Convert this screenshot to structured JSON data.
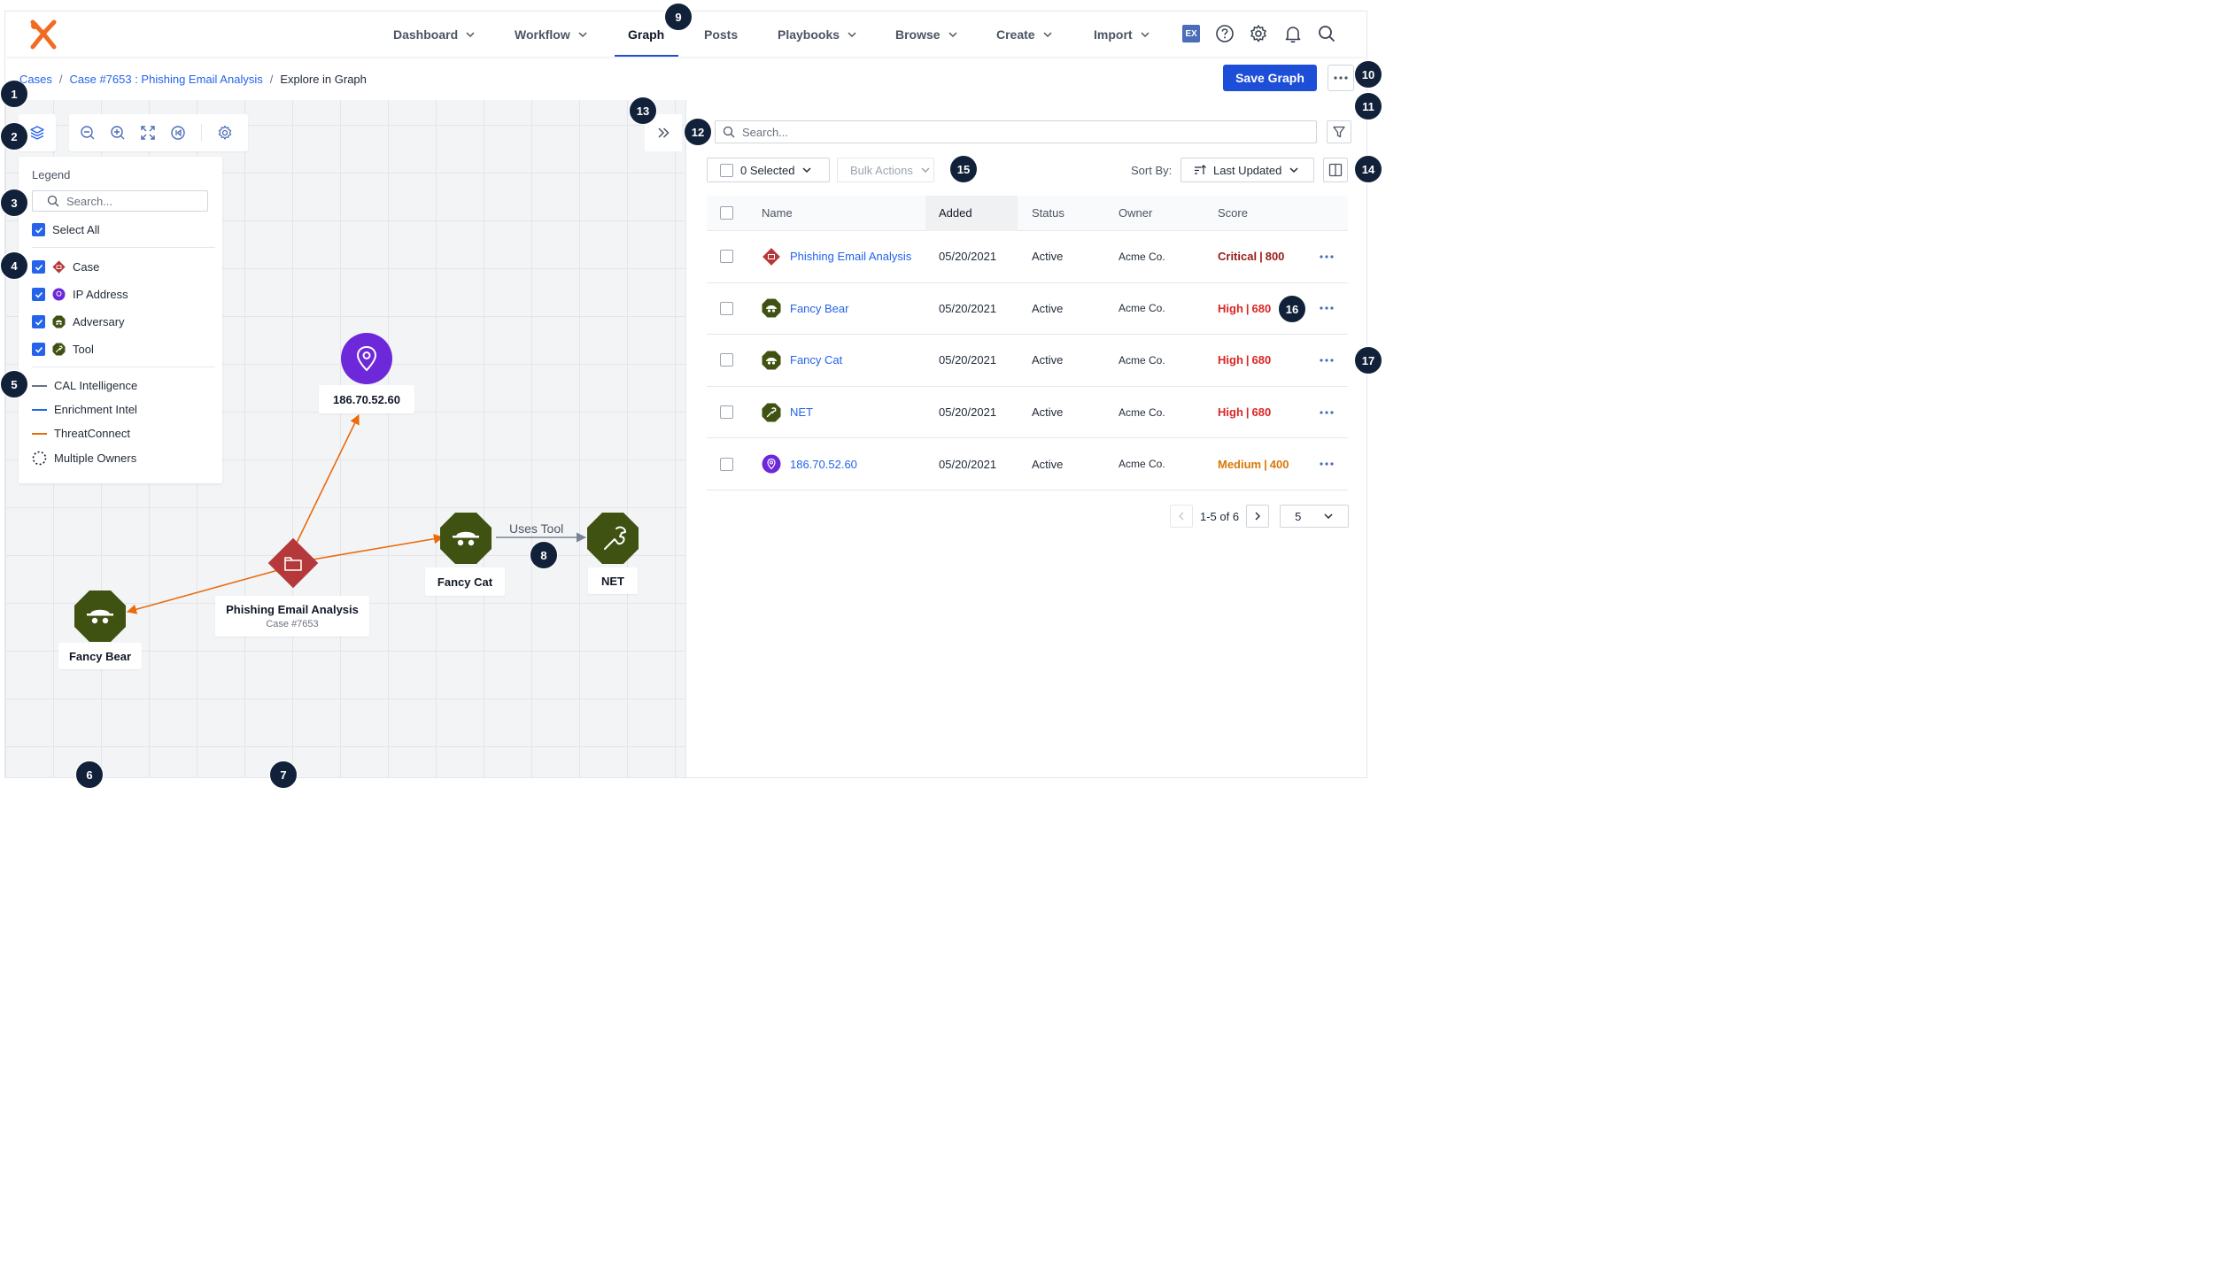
{
  "nav": {
    "items": [
      {
        "label": "Dashboard"
      },
      {
        "label": "Workflow"
      },
      {
        "label": "Graph"
      },
      {
        "label": "Posts"
      },
      {
        "label": "Playbooks"
      },
      {
        "label": "Browse"
      },
      {
        "label": "Create"
      },
      {
        "label": "Import"
      }
    ],
    "active": "Graph",
    "ex_badge": "EX",
    "accent_color": "#1d4ed8"
  },
  "breadcrumb": {
    "items": [
      "Cases",
      "Case #7653 : Phishing Email Analysis"
    ],
    "separator": "/",
    "current": "Explore in Graph"
  },
  "actions": {
    "save_label": "Save Graph"
  },
  "legend": {
    "title": "Legend",
    "search_placeholder": "Search...",
    "select_all": "Select All",
    "types": [
      "Case",
      "IP Address",
      "Adversary",
      "Tool"
    ],
    "sources": [
      {
        "label": "CAL Intelligence",
        "color": "#6b7280"
      },
      {
        "label": "Enrichment Intel",
        "color": "#2563eb"
      },
      {
        "label": "ThreatConnect",
        "color": "#ea6a0c"
      }
    ],
    "multiple_owners": "Multiple Owners"
  },
  "graph": {
    "nodes": {
      "ip": "186.70.52.60",
      "case_title": "Phishing Email Analysis",
      "case_sub": "Case #7653",
      "fancy_cat": "Fancy Cat",
      "net": "NET",
      "fancy_bear": "Fancy Bear"
    },
    "edge_label": "Uses Tool",
    "colors": {
      "case": "#b5393b",
      "ip": "#6d28d9",
      "adversary": "#3f5212",
      "edge_tc": "#ea6a0c",
      "edge_cal": "#6b7280"
    }
  },
  "panel": {
    "search_placeholder": "Search...",
    "selected": "0 Selected",
    "bulk_actions": "Bulk Actions",
    "sort_by": "Sort By:",
    "sort_value": "Last Updated",
    "columns": [
      "Name",
      "Added",
      "Status",
      "Owner",
      "Score"
    ],
    "rows": [
      {
        "name": "Phishing Email Analysis",
        "icon": "case-icon",
        "added": "05/20/2021",
        "status": "Active",
        "owner": "Acme Co.",
        "level": "Critical",
        "score": "800",
        "score_color": "#991b1b"
      },
      {
        "name": "Fancy Bear",
        "icon": "adversary-icon",
        "added": "05/20/2021",
        "status": "Active",
        "owner": "Acme Co.",
        "level": "High",
        "score": "680",
        "score_color": "#dc2626"
      },
      {
        "name": "Fancy Cat",
        "icon": "adversary-icon",
        "added": "05/20/2021",
        "status": "Active",
        "owner": "Acme Co.",
        "level": "High",
        "score": "680",
        "score_color": "#dc2626"
      },
      {
        "name": "NET",
        "icon": "tool-icon",
        "added": "05/20/2021",
        "status": "Active",
        "owner": "Acme Co.",
        "level": "High",
        "score": "680",
        "score_color": "#dc2626"
      },
      {
        "name": "186.70.52.60",
        "icon": "ip-icon",
        "added": "05/20/2021",
        "status": "Active",
        "owner": "Acme Co.",
        "level": "Medium",
        "score": "400",
        "score_color": "#d97706"
      }
    ],
    "pagination": {
      "range": "1-5 of 6",
      "page_size": "5"
    }
  },
  "callouts": [
    "1",
    "2",
    "3",
    "4",
    "5",
    "6",
    "7",
    "8",
    "9",
    "10",
    "11",
    "12",
    "13",
    "14",
    "15",
    "16",
    "17"
  ]
}
